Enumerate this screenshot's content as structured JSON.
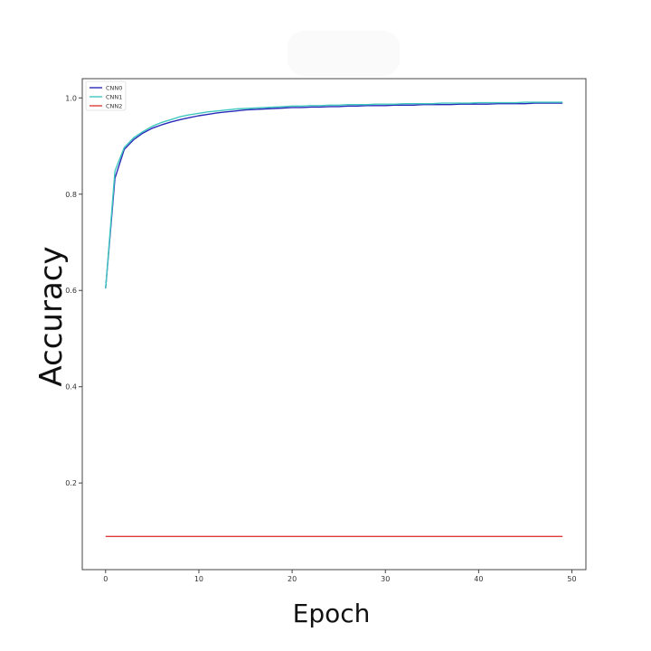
{
  "chart_data": {
    "type": "line",
    "title": "",
    "xlabel": "Epoch",
    "ylabel": "Accuracy",
    "xlim": [
      -2.5,
      51.5
    ],
    "ylim": [
      0.02,
      1.04
    ],
    "x_ticks": [
      0,
      10,
      20,
      30,
      40,
      50
    ],
    "y_ticks": [
      0.2,
      0.4,
      0.6,
      0.8,
      1.0
    ],
    "y_tick_labels": [
      "0.2",
      "0.4",
      "0.6",
      "0.8",
      "1.0"
    ],
    "grid": false,
    "legend_position": "top-left",
    "x": [
      0,
      1,
      2,
      3,
      4,
      5,
      6,
      7,
      8,
      9,
      10,
      11,
      12,
      13,
      14,
      15,
      16,
      17,
      18,
      19,
      20,
      21,
      22,
      23,
      24,
      25,
      26,
      27,
      28,
      29,
      30,
      31,
      32,
      33,
      34,
      35,
      36,
      37,
      38,
      39,
      40,
      41,
      42,
      43,
      44,
      45,
      46,
      47,
      48,
      49
    ],
    "series": [
      {
        "name": "CNN0",
        "color": "#2a2ab8",
        "values": [
          0.604,
          0.833,
          0.893,
          0.913,
          0.927,
          0.937,
          0.944,
          0.95,
          0.955,
          0.959,
          0.963,
          0.966,
          0.969,
          0.971,
          0.973,
          0.975,
          0.976,
          0.977,
          0.978,
          0.979,
          0.98,
          0.98,
          0.981,
          0.981,
          0.982,
          0.982,
          0.983,
          0.983,
          0.984,
          0.984,
          0.984,
          0.985,
          0.985,
          0.985,
          0.986,
          0.986,
          0.986,
          0.986,
          0.987,
          0.987,
          0.987,
          0.987,
          0.988,
          0.988,
          0.988,
          0.988,
          0.989,
          0.989,
          0.989,
          0.989
        ]
      },
      {
        "name": "CNN1",
        "color": "#40c8c0",
        "values": [
          0.604,
          0.848,
          0.897,
          0.917,
          0.93,
          0.941,
          0.949,
          0.955,
          0.961,
          0.965,
          0.968,
          0.971,
          0.973,
          0.975,
          0.977,
          0.978,
          0.979,
          0.98,
          0.981,
          0.982,
          0.983,
          0.983,
          0.984,
          0.984,
          0.985,
          0.985,
          0.986,
          0.986,
          0.986,
          0.987,
          0.987,
          0.987,
          0.988,
          0.988,
          0.988,
          0.988,
          0.989,
          0.989,
          0.989,
          0.989,
          0.99,
          0.99,
          0.99,
          0.99,
          0.99,
          0.991,
          0.991,
          0.991,
          0.991,
          0.991
        ]
      },
      {
        "name": "CNN2",
        "color": "#e03b3b",
        "values": [
          0.089,
          0.089,
          0.089,
          0.089,
          0.089,
          0.089,
          0.089,
          0.089,
          0.089,
          0.089,
          0.089,
          0.089,
          0.089,
          0.089,
          0.089,
          0.089,
          0.089,
          0.089,
          0.089,
          0.089,
          0.089,
          0.089,
          0.089,
          0.089,
          0.089,
          0.089,
          0.089,
          0.089,
          0.089,
          0.089,
          0.089,
          0.089,
          0.089,
          0.089,
          0.089,
          0.089,
          0.089,
          0.089,
          0.089,
          0.089,
          0.089,
          0.089,
          0.089,
          0.089,
          0.089,
          0.089,
          0.089,
          0.089,
          0.089,
          0.089
        ]
      }
    ]
  }
}
